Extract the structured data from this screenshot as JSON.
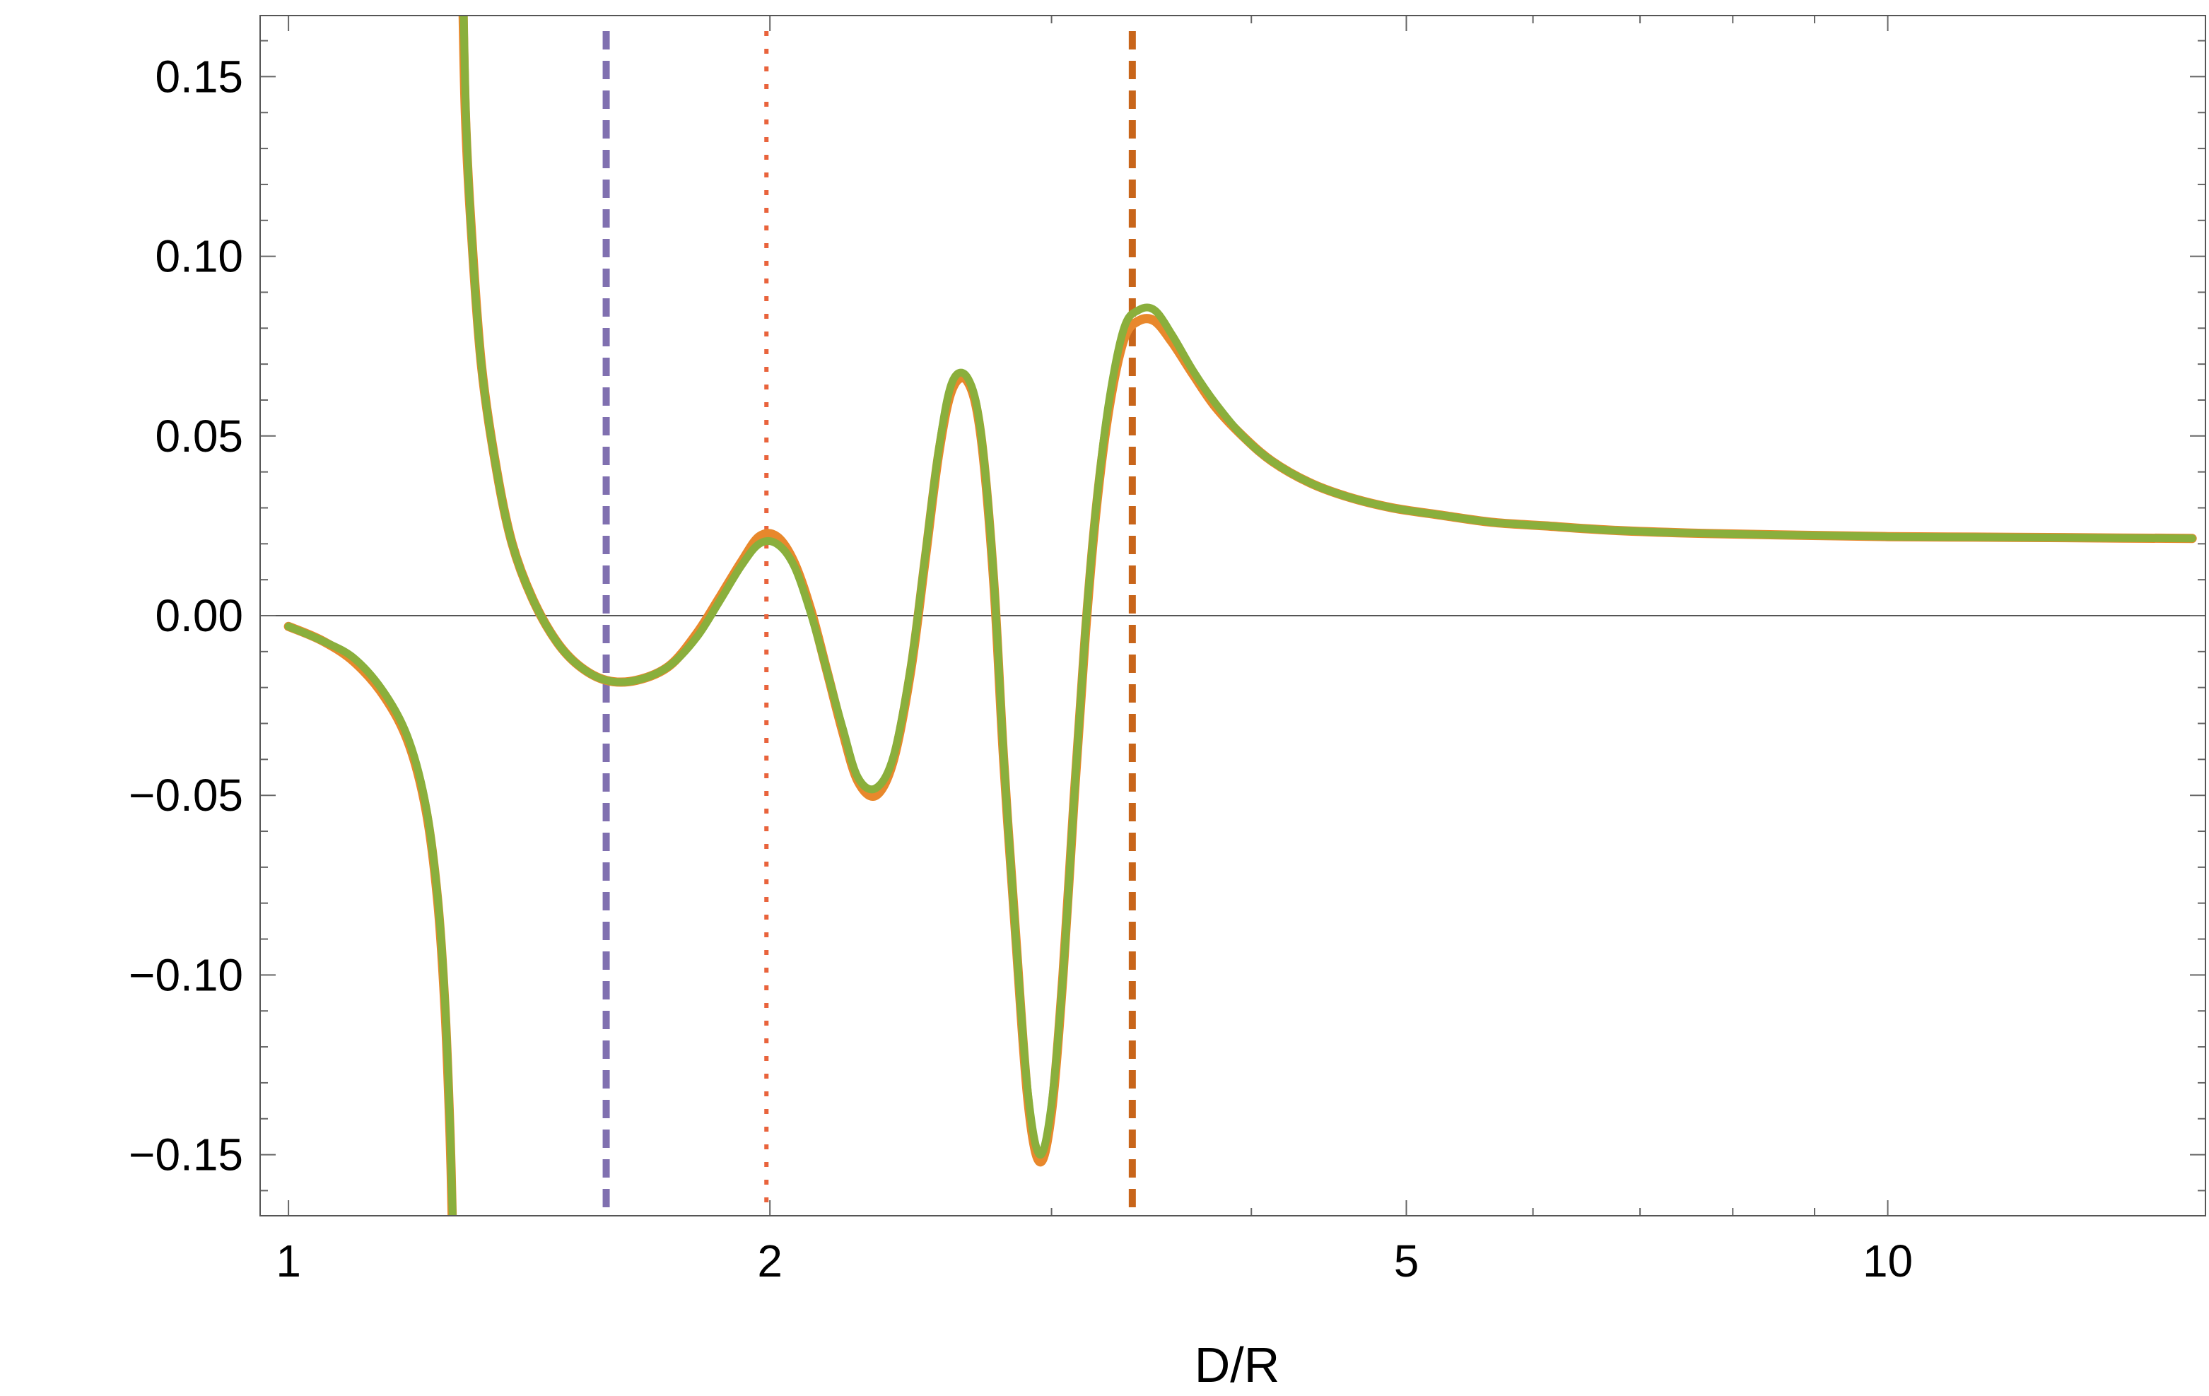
{
  "chart_data": {
    "type": "line",
    "title": "",
    "xlabel": "D/R",
    "ylabel": "",
    "x_scale": "log",
    "xlim": [
      0.96,
      15.8
    ],
    "ylim": [
      -0.167,
      0.167
    ],
    "x_ticks": [
      {
        "value": 1,
        "label": "1"
      },
      {
        "value": 2,
        "label": "2"
      },
      {
        "value": 5,
        "label": "5"
      },
      {
        "value": 10,
        "label": "10"
      }
    ],
    "x_minor_ticks": [
      3,
      4,
      6,
      7,
      8,
      9
    ],
    "y_ticks": [
      {
        "value": 0.15,
        "label": "0.15"
      },
      {
        "value": 0.1,
        "label": "0.10"
      },
      {
        "value": 0.05,
        "label": "0.05"
      },
      {
        "value": 0.0,
        "label": "0.00"
      },
      {
        "value": -0.05,
        "label": "−0.05"
      },
      {
        "value": -0.1,
        "label": "−0.10"
      },
      {
        "value": -0.15,
        "label": "−0.15"
      }
    ],
    "y_minor_step": 0.01,
    "grid": false,
    "zero_line": true,
    "vertical_lines": [
      {
        "x": 1.58,
        "style": "dashed",
        "color": "#8070b0"
      },
      {
        "x": 1.99,
        "style": "dotted",
        "color": "#e9633c"
      },
      {
        "x": 3.37,
        "style": "dashed",
        "color": "#c8651a"
      }
    ],
    "series": [
      {
        "color": "#e8882c",
        "segments": [
          {
            "x": [
              1.0,
              1.05,
              1.1,
              1.15,
              1.19,
              1.22,
              1.24,
              1.253,
              1.262,
              1.267
            ],
            "y": [
              -0.003,
              -0.007,
              -0.013,
              -0.023,
              -0.036,
              -0.055,
              -0.08,
              -0.11,
              -0.145,
              -0.175
            ]
          },
          {
            "x": [
              1.285,
              1.29,
              1.3,
              1.32,
              1.35,
              1.38,
              1.42,
              1.47,
              1.52,
              1.58,
              1.65,
              1.73,
              1.8,
              1.86,
              1.92,
              1.97,
              2.02,
              2.07,
              2.12,
              2.17,
              2.22,
              2.27,
              2.33,
              2.39,
              2.45,
              2.5,
              2.55,
              2.6,
              2.66,
              2.71,
              2.76,
              2.8,
              2.85,
              2.9,
              2.95,
              3.0,
              3.05,
              3.1,
              3.15,
              3.2,
              3.26,
              3.33,
              3.4,
              3.48,
              3.57,
              3.68,
              3.8,
              3.95,
              4.12,
              4.35,
              4.6,
              4.9,
              5.25,
              5.65,
              6.1,
              6.7,
              7.5,
              8.5,
              10.0,
              12.0,
              14.0,
              15.5
            ],
            "y": [
              0.175,
              0.14,
              0.11,
              0.07,
              0.04,
              0.02,
              0.005,
              -0.007,
              -0.014,
              -0.018,
              -0.018,
              -0.014,
              -0.005,
              0.005,
              0.015,
              0.022,
              0.022,
              0.015,
              0.002,
              -0.015,
              -0.032,
              -0.046,
              -0.05,
              -0.04,
              -0.015,
              0.015,
              0.045,
              0.063,
              0.065,
              0.05,
              0.01,
              -0.04,
              -0.09,
              -0.135,
              -0.152,
              -0.138,
              -0.1,
              -0.05,
              -0.005,
              0.03,
              0.058,
              0.077,
              0.082,
              0.082,
              0.076,
              0.067,
              0.058,
              0.05,
              0.043,
              0.037,
              0.033,
              0.03,
              0.028,
              0.026,
              0.025,
              0.0238,
              0.023,
              0.0225,
              0.022,
              0.0218,
              0.0216,
              0.0215
            ]
          }
        ]
      },
      {
        "color": "#8aaf3c",
        "segments": [
          {
            "x": [
              1.0,
              1.05,
              1.1,
              1.15,
              1.19,
              1.22,
              1.24,
              1.253,
              1.262,
              1.268
            ],
            "y": [
              -0.003,
              -0.007,
              -0.012,
              -0.022,
              -0.035,
              -0.054,
              -0.079,
              -0.108,
              -0.143,
              -0.175
            ]
          },
          {
            "x": [
              1.286,
              1.291,
              1.3,
              1.32,
              1.35,
              1.38,
              1.42,
              1.47,
              1.52,
              1.58,
              1.65,
              1.73,
              1.8,
              1.86,
              1.92,
              1.97,
              2.02,
              2.07,
              2.12,
              2.17,
              2.22,
              2.27,
              2.33,
              2.39,
              2.45,
              2.5,
              2.55,
              2.6,
              2.66,
              2.71,
              2.76,
              2.8,
              2.85,
              2.9,
              2.95,
              3.0,
              3.05,
              3.1,
              3.15,
              3.2,
              3.26,
              3.33,
              3.4,
              3.48,
              3.57,
              3.68,
              3.8,
              3.95,
              4.12,
              4.35,
              4.6,
              4.9,
              5.25,
              5.65,
              6.1,
              6.7,
              7.5,
              8.5,
              10.0,
              12.0,
              14.0,
              15.5
            ],
            "y": [
              0.175,
              0.14,
              0.11,
              0.07,
              0.04,
              0.02,
              0.005,
              -0.007,
              -0.014,
              -0.018,
              -0.018,
              -0.014,
              -0.006,
              0.004,
              0.014,
              0.02,
              0.02,
              0.014,
              0.001,
              -0.015,
              -0.031,
              -0.045,
              -0.048,
              -0.039,
              -0.014,
              0.016,
              0.046,
              0.065,
              0.066,
              0.051,
              0.011,
              -0.039,
              -0.09,
              -0.133,
              -0.15,
              -0.136,
              -0.1,
              -0.05,
              -0.004,
              0.031,
              0.06,
              0.08,
              0.085,
              0.085,
              0.078,
              0.068,
              0.059,
              0.05,
              0.043,
              0.037,
              0.033,
              0.03,
              0.028,
              0.026,
              0.025,
              0.0238,
              0.023,
              0.0225,
              0.022,
              0.0218,
              0.0216,
              0.0215
            ]
          }
        ]
      }
    ]
  }
}
